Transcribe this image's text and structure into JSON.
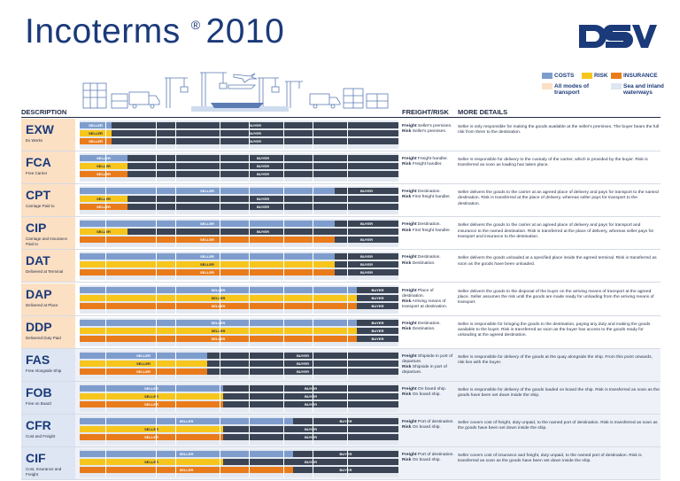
{
  "title": {
    "main": "Incoterms",
    "reg": "®",
    "year": "2010"
  },
  "brand": {
    "logo_text": "DSV",
    "color": "#1b3a7a"
  },
  "legend": {
    "costs": "COSTS",
    "risk": "RISK",
    "insurance": "INSURANCE",
    "all_modes": "All modes of transport",
    "sea_inland": "Sea and inland waterways",
    "colors": {
      "costs": "#7e9dcd",
      "risk": "#f7c61c",
      "insurance": "#e97b1b",
      "all_modes": "#fce0c4",
      "sea_inland": "#dde6f2",
      "buyer": "#3a4454"
    }
  },
  "columns": {
    "description": "DESCRIPTION",
    "freight_risk": "FREIGHT/RISK",
    "more_details": "MORE DETAILS"
  },
  "terms": [
    {
      "code": "EXW",
      "sub": "Ex Works",
      "mode": "all",
      "seller_share": [
        0.1,
        0.1,
        0.1
      ],
      "fr": [
        {
          "k": "Freight",
          "v": " Seller's premises."
        },
        {
          "k": "Risk",
          "v": " Seller's premises."
        }
      ],
      "details": "Seller is only responsible for making the goods available at the seller's premises. The buyer bears the full risk from there to the destination."
    },
    {
      "code": "FCA",
      "sub": "Free Carrier",
      "mode": "all",
      "seller_share": [
        0.15,
        0.15,
        0.15
      ],
      "fr": [
        {
          "k": "Freight",
          "v": " Freight handler."
        },
        {
          "k": "Risk",
          "v": " Freight handler."
        }
      ],
      "details": "Seller is responsible for delivery to the custody of the carrier, which is provided by the buyer. Risk is transferred as soon as loading has taken place."
    },
    {
      "code": "CPT",
      "sub": "Carriage Paid to",
      "mode": "all",
      "seller_share": [
        0.8,
        0.15,
        0.15
      ],
      "fr": [
        {
          "k": "Freight",
          "v": " Destination."
        },
        {
          "k": "Risk",
          "v": " First freight handler."
        }
      ],
      "details": "Seller delivers the goods to the carrier at an agreed place of delivery and pays for transport to the named destination. Risk is transferred at the place of delivery, whereas seller pays for transport to the destination."
    },
    {
      "code": "CIP",
      "sub": "Carriage and Insurance Paid to",
      "mode": "all",
      "seller_share": [
        0.8,
        0.15,
        0.8
      ],
      "fr": [
        {
          "k": "Freight",
          "v": " Destination."
        },
        {
          "k": "Risk",
          "v": " First freight handler."
        }
      ],
      "details": "Seller delivers the goods to the carrier at an agreed place of delivery and pays for transport and insurance to the named destination. Risk is transferred at the place of delivery, whereas seller pays for transport and insurance to the destination."
    },
    {
      "code": "DAT",
      "sub": "Delivered at Terminal",
      "mode": "all",
      "seller_share": [
        0.8,
        0.8,
        0.8
      ],
      "fr": [
        {
          "k": "Freight",
          "v": " Destination."
        },
        {
          "k": "Risk",
          "v": " Destination."
        }
      ],
      "details": "Seller delivers the goods unloaded at a specified place inside the agreed terminal. Risk is transferred as soon as the goods have been unloaded."
    },
    {
      "code": "DAP",
      "sub": "Delivered at Place",
      "mode": "all",
      "seller_share": [
        0.87,
        0.87,
        0.87
      ],
      "fr": [
        {
          "k": "Freight",
          "v": " Place of destination."
        },
        {
          "k": "Risk",
          "v": " Arriving means of transport at destination."
        }
      ],
      "details": "Seller delivers the goods to the disposal of the buyer on the arriving means of transport at the agreed place. Seller assumes the risk until the goods are made ready for unloading from the arriving means of transport."
    },
    {
      "code": "DDP",
      "sub": "Delivered Duty Paid",
      "mode": "all",
      "seller_share": [
        0.87,
        0.87,
        0.87
      ],
      "fr": [
        {
          "k": "Freight",
          "v": " Destination."
        },
        {
          "k": "Risk",
          "v": " Destination."
        }
      ],
      "details": "Seller is responsible for bringing the goods to the destination, paying any duty and making the goods available to the buyer. Risk is transferred as soon as the buyer has access to the goods ready for unloading at the agreed destination."
    },
    {
      "code": "FAS",
      "sub": "Free Alongside Ship",
      "mode": "sea",
      "seller_share": [
        0.4,
        0.4,
        0.4
      ],
      "fr": [
        {
          "k": "Freight",
          "v": " Shipside in port of departure."
        },
        {
          "k": "Risk",
          "v": " Shipside in port of departure."
        }
      ],
      "details": "Seller is responsible for delivery of the goods at the quay alongside the ship. From this point onwards, risk lies with the buyer."
    },
    {
      "code": "FOB",
      "sub": "Free on Board",
      "mode": "sea",
      "seller_share": [
        0.45,
        0.45,
        0.45
      ],
      "fr": [
        {
          "k": "Freight",
          "v": " On board ship."
        },
        {
          "k": "Risk",
          "v": " On board ship."
        }
      ],
      "details": "Seller is responsible for delivery of the goods loaded on board the ship. Risk is transferred as soon as the goods have been set down inside the ship."
    },
    {
      "code": "CFR",
      "sub": "Cost and Freight",
      "mode": "sea",
      "seller_share": [
        0.67,
        0.45,
        0.45
      ],
      "fr": [
        {
          "k": "Freight",
          "v": " Port of destination."
        },
        {
          "k": "Risk",
          "v": " On board ship."
        }
      ],
      "details": "Seller covers cost of freight, duty unpaid, to the named port of destination. Risk is transferred as soon as the goods have been set down inside the ship."
    },
    {
      "code": "CIF",
      "sub": "Cost, Insurance and Freight",
      "mode": "sea",
      "seller_share": [
        0.67,
        0.45,
        0.67
      ],
      "fr": [
        {
          "k": "Freight",
          "v": " Port of destination."
        },
        {
          "k": "Risk",
          "v": " On board ship."
        }
      ],
      "details": "Seller covers cost of insurance and freight, duty unpaid, to the named port of destination. Risk is transferred as soon as the goods have been set down inside the ship."
    }
  ],
  "labels": {
    "seller": "SELLER",
    "buyer": "BUYER"
  }
}
